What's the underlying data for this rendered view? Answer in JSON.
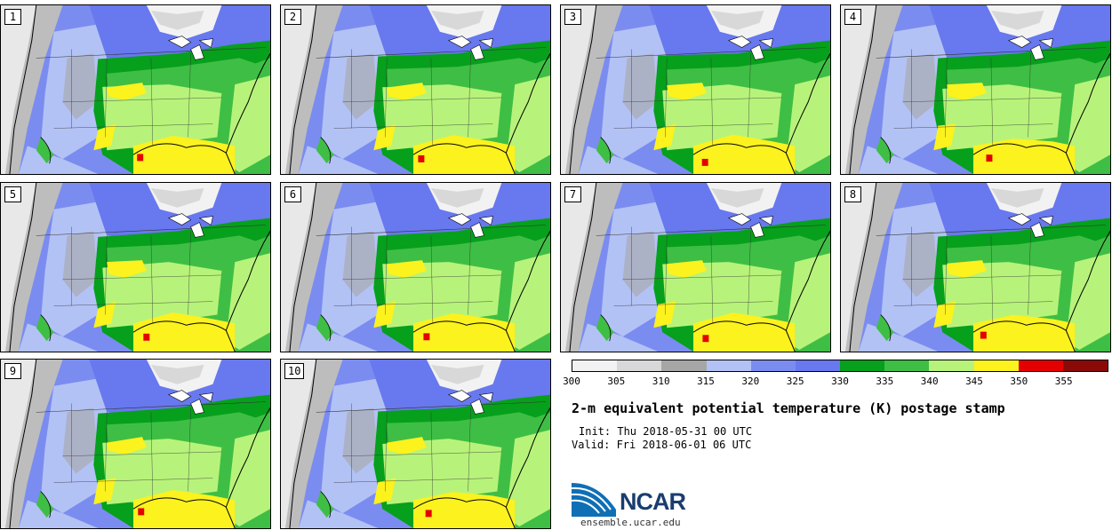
{
  "map_panels": [
    {
      "label": "1"
    },
    {
      "label": "2"
    },
    {
      "label": "3"
    },
    {
      "label": "4"
    },
    {
      "label": "5"
    },
    {
      "label": "6"
    },
    {
      "label": "7"
    },
    {
      "label": "8"
    },
    {
      "label": "9"
    },
    {
      "label": "10"
    }
  ],
  "colorbar": {
    "colors": [
      "#f2f2f2",
      "#d8d8d8",
      "#a6a6a6",
      "#b3c2f5",
      "#7b8cf0",
      "#6878ee",
      "#06a01c",
      "#3fbe45",
      "#b7f37a",
      "#fbf21e",
      "#e40000",
      "#8a0a0a"
    ],
    "ticks": [
      "300",
      "305",
      "310",
      "315",
      "320",
      "325",
      "330",
      "335",
      "340",
      "345",
      "350",
      "355"
    ]
  },
  "title": "2-m equivalent potential temperature (K) postage stamp",
  "init_text": "Init: Thu 2018-05-31 00 UTC",
  "valid_text": "Valid: Fri 2018-06-01 06 UTC",
  "logo": {
    "text": "NCAR"
  },
  "site": "ensemble.ucar.edu"
}
